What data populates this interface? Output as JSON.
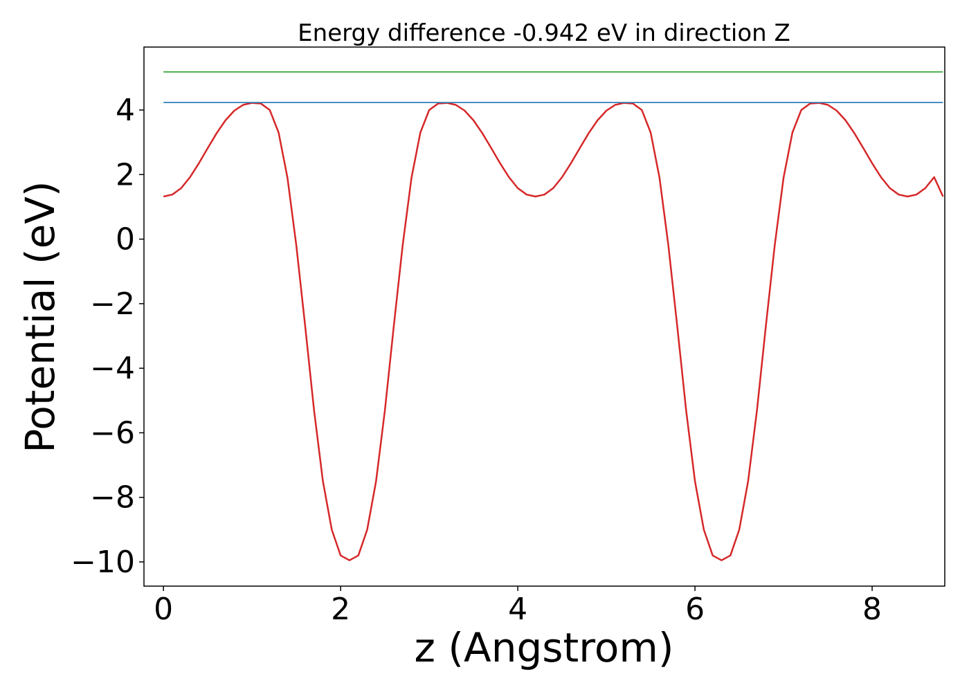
{
  "chart_data": {
    "type": "line",
    "title": "Energy difference -0.942 eV in direction Z",
    "xlabel": "z (Angstrom)",
    "ylabel": "Potential (eV)",
    "xlim": [
      -0.22,
      8.82
    ],
    "ylim": [
      -10.75,
      5.95
    ],
    "xticks": [
      0,
      2,
      4,
      6,
      8
    ],
    "yticks": [
      4,
      2,
      0,
      -2,
      -4,
      -6,
      -8,
      -10
    ],
    "xtick_labels": [
      "0",
      "2",
      "4",
      "6",
      "8"
    ],
    "ytick_labels": [
      "4",
      "2",
      "0",
      "−2",
      "−4",
      "−6",
      "−8",
      "−10"
    ],
    "grid": false,
    "legend": false,
    "series": [
      {
        "color": "#d62728",
        "x": [
          0.0,
          0.1,
          0.2,
          0.3,
          0.4,
          0.5,
          0.6,
          0.7,
          0.8,
          0.9,
          1.0,
          1.1,
          1.2,
          1.3,
          1.4,
          1.5,
          1.6,
          1.7,
          1.8,
          1.9,
          2.0,
          2.1,
          2.2,
          2.3,
          2.4,
          2.5,
          2.6,
          2.7,
          2.8,
          2.9,
          3.0,
          3.1,
          3.2,
          3.3,
          3.4,
          3.5,
          3.6,
          3.7,
          3.8,
          3.9,
          4.0,
          4.1,
          4.2,
          4.3,
          4.4,
          4.5,
          4.6,
          4.7,
          4.8,
          4.9,
          5.0,
          5.1,
          5.2,
          5.3,
          5.4,
          5.5,
          5.6,
          5.7,
          5.8,
          5.9,
          6.0,
          6.1,
          6.2,
          6.3,
          6.4,
          6.5,
          6.6,
          6.7,
          6.8,
          6.9,
          7.0,
          7.1,
          7.2,
          7.3,
          7.4,
          7.5,
          7.6,
          7.7,
          7.8,
          7.9,
          8.0,
          8.1,
          8.2,
          8.3,
          8.4,
          8.5,
          8.6,
          8.7,
          8.8
        ],
        "y": [
          1.32,
          1.38,
          1.58,
          1.92,
          2.35,
          2.82,
          3.28,
          3.68,
          3.98,
          4.16,
          4.22,
          4.2,
          4.0,
          3.3,
          1.9,
          -0.2,
          -2.7,
          -5.3,
          -7.5,
          -9.0,
          -9.8,
          -9.95,
          -9.8,
          -9.0,
          -7.5,
          -5.3,
          -2.7,
          -0.2,
          1.9,
          3.3,
          4.0,
          4.2,
          4.22,
          4.16,
          3.98,
          3.68,
          3.28,
          2.82,
          2.35,
          1.92,
          1.58,
          1.38,
          1.32,
          1.38,
          1.58,
          1.92,
          2.35,
          2.82,
          3.28,
          3.68,
          3.98,
          4.16,
          4.22,
          4.2,
          4.0,
          3.3,
          1.9,
          -0.2,
          -2.7,
          -5.3,
          -7.5,
          -9.0,
          -9.8,
          -9.95,
          -9.8,
          -9.0,
          -7.5,
          -5.3,
          -2.7,
          -0.2,
          1.9,
          3.3,
          4.0,
          4.2,
          4.22,
          4.16,
          3.98,
          3.68,
          3.28,
          2.82,
          2.35,
          1.92,
          1.58,
          1.38,
          1.32,
          1.38,
          1.58,
          1.92,
          1.32
        ]
      },
      {
        "color": "#1f77b4",
        "x": [
          0.0,
          8.8
        ],
        "y": [
          4.23,
          4.23
        ]
      },
      {
        "color": "#2ca02c",
        "x": [
          0.0,
          8.8
        ],
        "y": [
          5.18,
          5.18
        ]
      }
    ]
  }
}
